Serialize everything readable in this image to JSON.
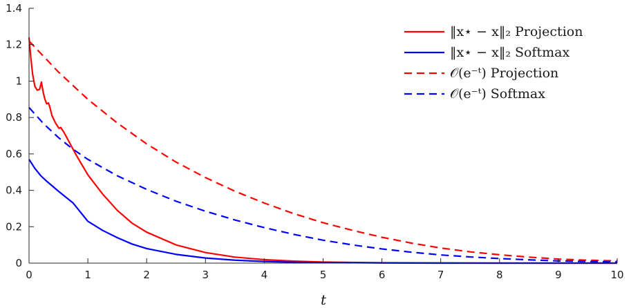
{
  "chart_data": {
    "type": "line",
    "xlabel": "t",
    "ylabel": "",
    "xlim": [
      0,
      10
    ],
    "ylim": [
      0,
      1.4
    ],
    "xticks": [
      "0",
      "1",
      "2",
      "3",
      "4",
      "5",
      "6",
      "7",
      "8",
      "9",
      "10"
    ],
    "yticks": [
      "0",
      "0.2",
      "0.4",
      "0.6",
      "0.8",
      "1",
      "1.2",
      "1.4"
    ],
    "grid": false,
    "legend_position": "top-right",
    "colors": {
      "red": "#ff0000",
      "blue": "#0000ff"
    },
    "series": [
      {
        "name": "‖x⋆ − x‖₂ Projection",
        "color": "#ff0000",
        "dash": "solid",
        "x": [
          0,
          0.03,
          0.06,
          0.1,
          0.14,
          0.18,
          0.21,
          0.24,
          0.27,
          0.3,
          0.33,
          0.36,
          0.39,
          0.42,
          0.45,
          0.48,
          0.51,
          0.54,
          0.57,
          0.6,
          0.7,
          0.8,
          1.0,
          1.25,
          1.5,
          1.75,
          2.0,
          2.5,
          3.0,
          3.5,
          4.0,
          4.5,
          5.0,
          6.0,
          7.0,
          8.0,
          9.0,
          10.0
        ],
        "y": [
          1.24,
          1.13,
          1.04,
          0.97,
          0.95,
          0.955,
          0.995,
          0.94,
          0.9,
          0.875,
          0.88,
          0.85,
          0.81,
          0.79,
          0.77,
          0.755,
          0.74,
          0.745,
          0.73,
          0.715,
          0.655,
          0.595,
          0.485,
          0.38,
          0.29,
          0.22,
          0.17,
          0.1,
          0.058,
          0.033,
          0.019,
          0.011,
          0.006,
          0.002,
          0.001,
          0.0,
          0.0,
          0.0
        ]
      },
      {
        "name": "‖x⋆ − x‖₂ Softmax",
        "color": "#0000ff",
        "dash": "solid",
        "x": [
          0,
          0.1,
          0.2,
          0.3,
          0.5,
          0.75,
          1.0,
          1.25,
          1.5,
          1.75,
          2.0,
          2.5,
          3.0,
          3.5,
          4.0,
          4.5,
          5.0,
          6.0,
          7.0,
          8.0,
          9.0,
          10.0
        ],
        "y": [
          0.57,
          0.52,
          0.48,
          0.45,
          0.395,
          0.33,
          0.23,
          0.18,
          0.14,
          0.105,
          0.08,
          0.048,
          0.028,
          0.016,
          0.009,
          0.005,
          0.003,
          0.001,
          0.0,
          0.0,
          0.0,
          0.0
        ]
      },
      {
        "name": "𝒪(e⁻ᵗ) Projection",
        "color": "#ff0000",
        "dash": "dashed",
        "x": [
          0,
          0.25,
          0.5,
          0.75,
          1.0,
          1.5,
          2.0,
          2.5,
          3.0,
          3.5,
          4.0,
          4.5,
          5.0,
          5.5,
          6.0,
          6.5,
          7.0,
          7.5,
          8.0,
          8.5,
          9.0,
          9.5,
          10.0
        ],
        "y": [
          1.22,
          1.135,
          1.05,
          0.975,
          0.9,
          0.77,
          0.655,
          0.555,
          0.47,
          0.395,
          0.33,
          0.272,
          0.222,
          0.18,
          0.142,
          0.11,
          0.083,
          0.062,
          0.046,
          0.033,
          0.022,
          0.016,
          0.012
        ]
      },
      {
        "name": "𝒪(e⁻ᵗ) Softmax",
        "color": "#0000ff",
        "dash": "dashed",
        "x": [
          0,
          0.25,
          0.5,
          0.75,
          1.0,
          1.5,
          2.0,
          2.5,
          3.0,
          3.5,
          4.0,
          4.5,
          5.0,
          5.5,
          6.0,
          6.5,
          7.0,
          7.5,
          8.0,
          8.5,
          9.0,
          9.5,
          10.0
        ],
        "y": [
          0.855,
          0.765,
          0.69,
          0.625,
          0.57,
          0.48,
          0.405,
          0.34,
          0.285,
          0.237,
          0.195,
          0.158,
          0.126,
          0.1,
          0.078,
          0.06,
          0.045,
          0.034,
          0.025,
          0.018,
          0.012,
          0.009,
          0.006
        ]
      }
    ]
  }
}
